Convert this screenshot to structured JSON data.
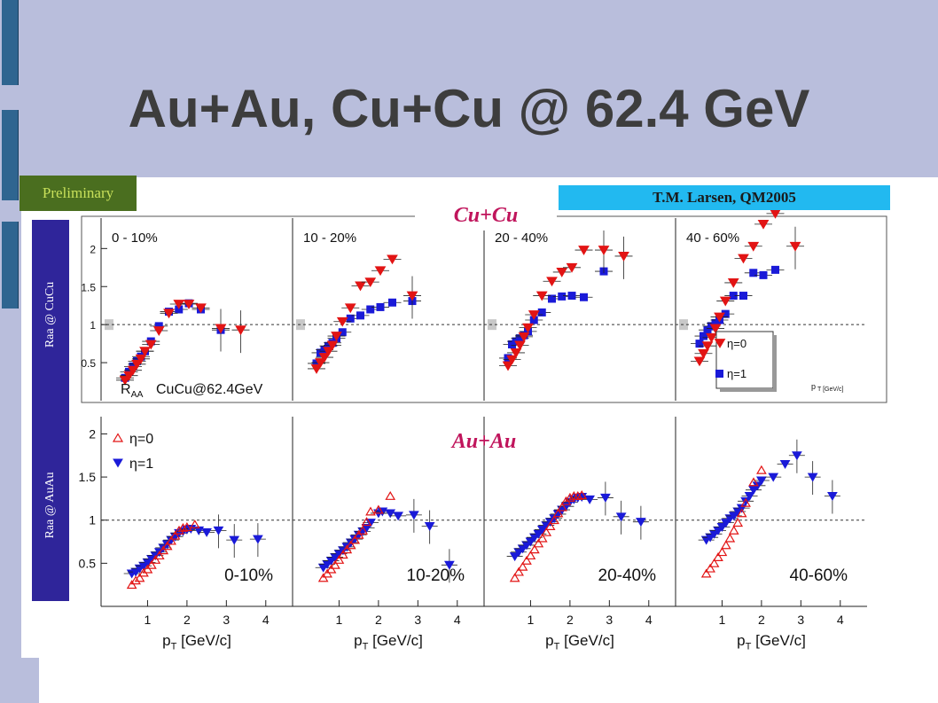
{
  "slide": {
    "title": "Au+Au, Cu+Cu @ 62.4 GeV",
    "preliminary": "Preliminary",
    "credit": "T.M. Larsen, QM2005",
    "cucu_tag": "Cu+Cu",
    "auau_tag": "Au+Au",
    "cucu_side": "Raa @ CuCu",
    "auau_side": "Raa @ AuAu",
    "cucu_inner_label": "R_AA CuCu@62.4GeV",
    "cucu_xunit": "p_T [GeV/c]",
    "auau_xlabel": "p_T [GeV/c]",
    "auau_ylabel": "R_AA",
    "cucu_ticks_y": [
      "0.5",
      "1",
      "1.5",
      "2"
    ],
    "auau_ticks_y": [
      "0.5",
      "1",
      "1.5",
      "2"
    ],
    "auau_ticks_x": [
      "1",
      "2",
      "3",
      "4"
    ],
    "legend_eta0": "η=0",
    "legend_eta1": "η=1",
    "colors": {
      "eta0": "#e21414",
      "eta1": "#1a1ad8",
      "side_band": "#2f259a",
      "credit": "#22b9f0",
      "prelim": "#4a6e1f"
    }
  },
  "chart_data": [
    {
      "type": "scatter",
      "title": "Cu+Cu",
      "ylim": [
        0,
        2.4
      ],
      "xlim": [
        0,
        4.8
      ],
      "reference_line": 1,
      "panels": [
        {
          "label": "0 - 10%",
          "series": [
            {
              "name": "η=0",
              "x": [
                0.6,
                0.7,
                0.8,
                0.9,
                1.0,
                1.1,
                1.25,
                1.45,
                1.7,
                1.95,
                2.2,
                2.5,
                3.0,
                3.5
              ],
              "y": [
                0.27,
                0.33,
                0.4,
                0.48,
                0.55,
                0.65,
                0.74,
                0.92,
                1.15,
                1.27,
                1.27,
                1.22,
                0.95,
                0.93
              ]
            },
            {
              "name": "η=1",
              "x": [
                0.6,
                0.7,
                0.8,
                0.9,
                1.0,
                1.1,
                1.25,
                1.45,
                1.7,
                1.95,
                2.2,
                2.5,
                3.0
              ],
              "y": [
                0.3,
                0.38,
                0.45,
                0.52,
                0.58,
                0.65,
                0.78,
                0.98,
                1.17,
                1.2,
                1.28,
                1.2,
                0.93
              ]
            }
          ]
        },
        {
          "label": "10 - 20%",
          "series": [
            {
              "name": "η=0",
              "x": [
                0.6,
                0.7,
                0.8,
                0.9,
                1.0,
                1.1,
                1.25,
                1.45,
                1.7,
                1.95,
                2.2,
                2.5,
                3.0
              ],
              "y": [
                0.42,
                0.5,
                0.57,
                0.65,
                0.73,
                0.85,
                1.04,
                1.22,
                1.51,
                1.56,
                1.71,
                1.86,
                1.38
              ]
            },
            {
              "name": "η=1",
              "x": [
                0.6,
                0.7,
                0.8,
                0.9,
                1.0,
                1.1,
                1.25,
                1.45,
                1.7,
                1.95,
                2.2,
                2.5,
                3.0
              ],
              "y": [
                0.49,
                0.63,
                0.67,
                0.72,
                0.76,
                0.82,
                0.9,
                1.08,
                1.12,
                1.2,
                1.23,
                1.29,
                1.31
              ]
            }
          ]
        },
        {
          "label": "20 - 40%",
          "series": [
            {
              "name": "η=0",
              "x": [
                0.6,
                0.7,
                0.8,
                0.9,
                1.0,
                1.1,
                1.25,
                1.45,
                1.7,
                1.95,
                2.2,
                2.5,
                3.0,
                3.5
              ],
              "y": [
                0.46,
                0.54,
                0.63,
                0.73,
                0.84,
                0.96,
                1.13,
                1.38,
                1.57,
                1.69,
                1.75,
                1.98,
                1.98,
                1.9
              ]
            },
            {
              "name": "η=1",
              "x": [
                0.6,
                0.7,
                0.8,
                0.9,
                1.0,
                1.1,
                1.25,
                1.45,
                1.7,
                1.95,
                2.2,
                2.5,
                3.0
              ],
              "y": [
                0.56,
                0.74,
                0.78,
                0.82,
                0.86,
                0.91,
                1.06,
                1.16,
                1.34,
                1.37,
                1.38,
                1.36,
                1.7
              ]
            }
          ]
        },
        {
          "label": "40 - 60%",
          "series": [
            {
              "name": "η=0",
              "x": [
                0.6,
                0.7,
                0.8,
                0.9,
                1.0,
                1.1,
                1.25,
                1.45,
                1.7,
                1.95,
                2.2,
                2.5,
                3.0
              ],
              "y": [
                0.52,
                0.62,
                0.72,
                0.83,
                0.95,
                1.1,
                1.31,
                1.55,
                1.87,
                2.03,
                2.32,
                2.46,
                2.03
              ]
            },
            {
              "name": "η=1",
              "x": [
                0.6,
                0.7,
                0.8,
                0.9,
                1.0,
                1.1,
                1.25,
                1.45,
                1.7,
                1.95,
                2.2,
                2.5
              ],
              "y": [
                0.75,
                0.85,
                0.93,
                0.98,
                1.02,
                1.06,
                1.14,
                1.38,
                1.38,
                1.68,
                1.65,
                1.72
              ]
            }
          ]
        }
      ]
    },
    {
      "type": "scatter",
      "title": "Au+Au",
      "xlabel": "p_T [GeV/c]",
      "ylabel": "R_AA",
      "xlim": [
        0,
        4.5
      ],
      "ylim": [
        0,
        2.2
      ],
      "reference_line": 1,
      "panels": [
        {
          "label": "0-10%",
          "series": [
            {
              "name": "η=0",
              "x": [
                0.6,
                0.7,
                0.8,
                0.9,
                1.0,
                1.1,
                1.2,
                1.3,
                1.4,
                1.5,
                1.6,
                1.7,
                1.8,
                1.9,
                2.0,
                2.2
              ],
              "y": [
                0.25,
                0.3,
                0.33,
                0.39,
                0.43,
                0.48,
                0.54,
                0.59,
                0.65,
                0.7,
                0.76,
                0.82,
                0.88,
                0.91,
                0.92,
                0.95
              ]
            },
            {
              "name": "η=1",
              "x": [
                0.6,
                0.7,
                0.8,
                0.9,
                1.0,
                1.1,
                1.2,
                1.3,
                1.4,
                1.5,
                1.6,
                1.7,
                1.8,
                1.9,
                2.0,
                2.1,
                2.3,
                2.5,
                2.8,
                3.2,
                3.8
              ],
              "y": [
                0.38,
                0.4,
                0.44,
                0.47,
                0.51,
                0.55,
                0.59,
                0.63,
                0.68,
                0.72,
                0.77,
                0.81,
                0.85,
                0.87,
                0.89,
                0.9,
                0.88,
                0.86,
                0.88,
                0.77,
                0.78
              ]
            }
          ]
        },
        {
          "label": "10-20%",
          "series": [
            {
              "name": "η=0",
              "x": [
                0.6,
                0.7,
                0.8,
                0.9,
                1.0,
                1.1,
                1.2,
                1.3,
                1.4,
                1.5,
                1.6,
                1.7,
                1.8,
                2.0,
                2.3
              ],
              "y": [
                0.33,
                0.38,
                0.43,
                0.48,
                0.54,
                0.6,
                0.66,
                0.71,
                0.77,
                0.83,
                0.88,
                0.98,
                1.1,
                1.12,
                1.28
              ]
            },
            {
              "name": "η=1",
              "x": [
                0.6,
                0.7,
                0.8,
                0.9,
                1.0,
                1.1,
                1.2,
                1.3,
                1.4,
                1.5,
                1.6,
                1.7,
                1.8,
                2.0,
                2.1,
                2.3,
                2.5,
                2.9,
                3.3,
                3.8
              ],
              "y": [
                0.45,
                0.49,
                0.53,
                0.57,
                0.61,
                0.65,
                0.69,
                0.74,
                0.78,
                0.83,
                0.87,
                0.91,
                0.97,
                1.08,
                1.1,
                1.08,
                1.05,
                1.06,
                0.93,
                0.48
              ]
            }
          ]
        },
        {
          "label": "20-40%",
          "series": [
            {
              "name": "η=0",
              "x": [
                0.6,
                0.7,
                0.8,
                0.9,
                1.0,
                1.1,
                1.2,
                1.3,
                1.4,
                1.5,
                1.6,
                1.7,
                1.8,
                1.9,
                2.0,
                2.1,
                2.2,
                2.3
              ],
              "y": [
                0.33,
                0.4,
                0.46,
                0.53,
                0.59,
                0.66,
                0.73,
                0.79,
                0.86,
                0.93,
                1.0,
                1.08,
                1.15,
                1.22,
                1.26,
                1.28,
                1.28,
                1.29
              ]
            },
            {
              "name": "η=1",
              "x": [
                0.6,
                0.7,
                0.8,
                0.9,
                1.0,
                1.1,
                1.2,
                1.3,
                1.4,
                1.5,
                1.6,
                1.7,
                1.8,
                1.9,
                2.0,
                2.1,
                2.2,
                2.3,
                2.5,
                2.9,
                3.3,
                3.8
              ],
              "y": [
                0.58,
                0.63,
                0.67,
                0.71,
                0.75,
                0.8,
                0.84,
                0.89,
                0.94,
                0.98,
                1.02,
                1.07,
                1.12,
                1.16,
                1.21,
                1.24,
                1.26,
                1.27,
                1.24,
                1.26,
                1.04,
                0.98
              ]
            }
          ]
        },
        {
          "label": "40-60%",
          "series": [
            {
              "name": "η=0",
              "x": [
                0.6,
                0.7,
                0.8,
                0.9,
                1.0,
                1.1,
                1.2,
                1.3,
                1.4,
                1.5,
                1.6,
                1.8,
                2.0
              ],
              "y": [
                0.38,
                0.44,
                0.5,
                0.57,
                0.63,
                0.71,
                0.79,
                0.88,
                0.97,
                1.08,
                1.2,
                1.44,
                1.58
              ]
            },
            {
              "name": "η=1",
              "x": [
                0.6,
                0.7,
                0.8,
                0.9,
                1.0,
                1.1,
                1.2,
                1.3,
                1.4,
                1.5,
                1.6,
                1.7,
                1.8,
                1.9,
                2.0,
                2.3,
                2.6,
                2.9,
                3.3,
                3.8
              ],
              "y": [
                0.77,
                0.8,
                0.84,
                0.88,
                0.92,
                0.97,
                1.02,
                1.05,
                1.1,
                1.14,
                1.22,
                1.28,
                1.35,
                1.4,
                1.46,
                1.5,
                1.65,
                1.75,
                1.5,
                1.28
              ]
            }
          ]
        }
      ]
    }
  ]
}
